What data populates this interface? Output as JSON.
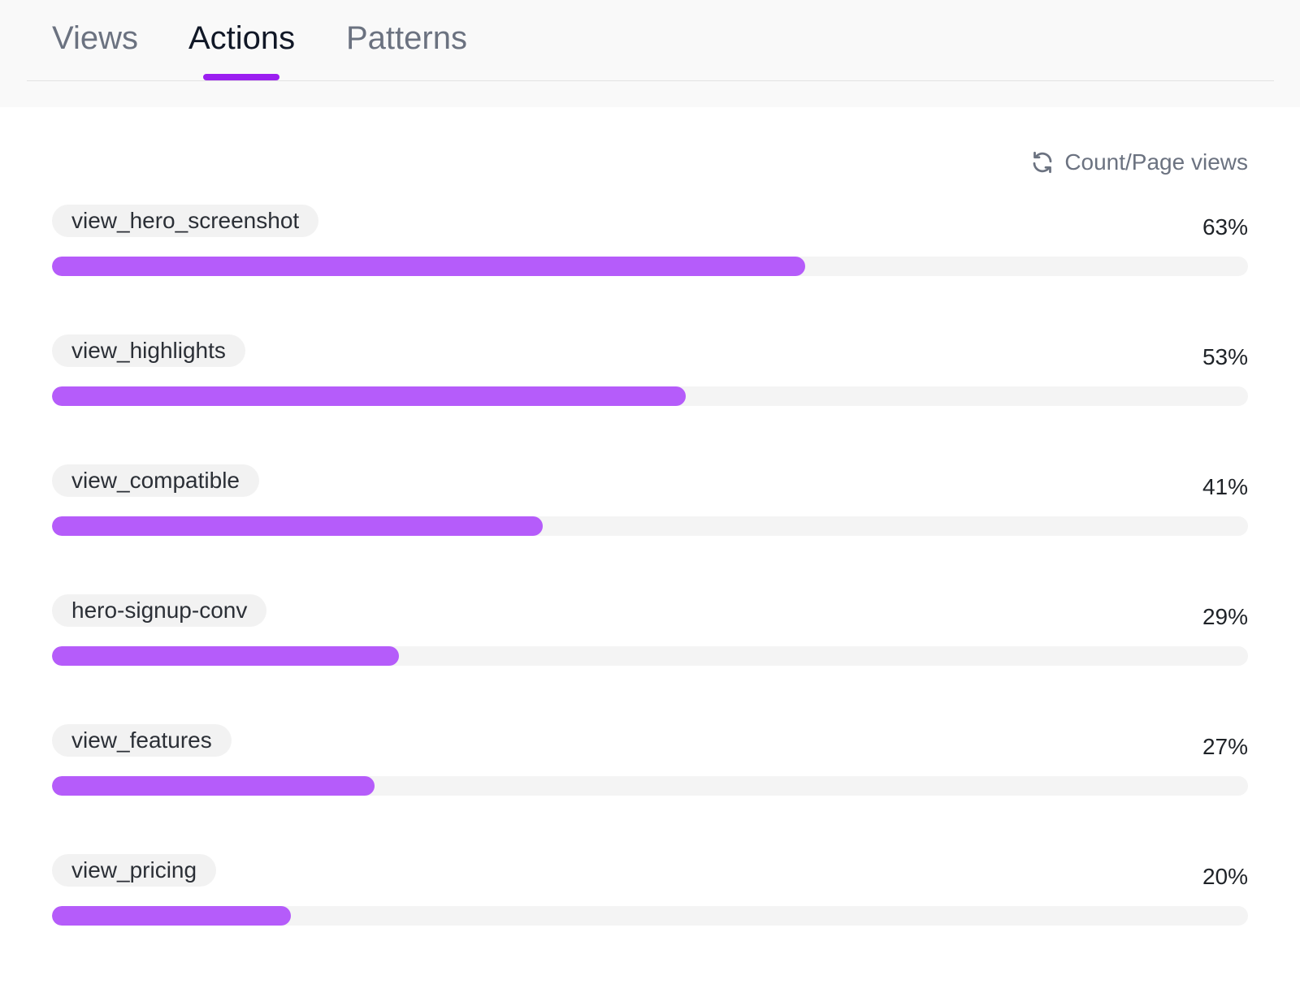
{
  "tabs": [
    {
      "label": "Views",
      "active": false
    },
    {
      "label": "Actions",
      "active": true
    },
    {
      "label": "Patterns",
      "active": false
    }
  ],
  "metric_toggle": {
    "label": "Count/Page views",
    "icon": "refresh-icon"
  },
  "colors": {
    "accent": "#9b1ff0",
    "bar_fill": "#b55cfa",
    "bar_track": "#f4f4f4",
    "pill_bg": "#f2f2f2"
  },
  "actions": [
    {
      "name": "view_hero_screenshot",
      "percent_label": "63%",
      "fraction": 0.63
    },
    {
      "name": "view_highlights",
      "percent_label": "53%",
      "fraction": 0.53
    },
    {
      "name": "view_compatible",
      "percent_label": "41%",
      "fraction": 0.41
    },
    {
      "name": "hero-signup-conv",
      "percent_label": "29%",
      "fraction": 0.29
    },
    {
      "name": "view_features",
      "percent_label": "27%",
      "fraction": 0.27
    },
    {
      "name": "view_pricing",
      "percent_label": "20%",
      "fraction": 0.2
    }
  ]
}
